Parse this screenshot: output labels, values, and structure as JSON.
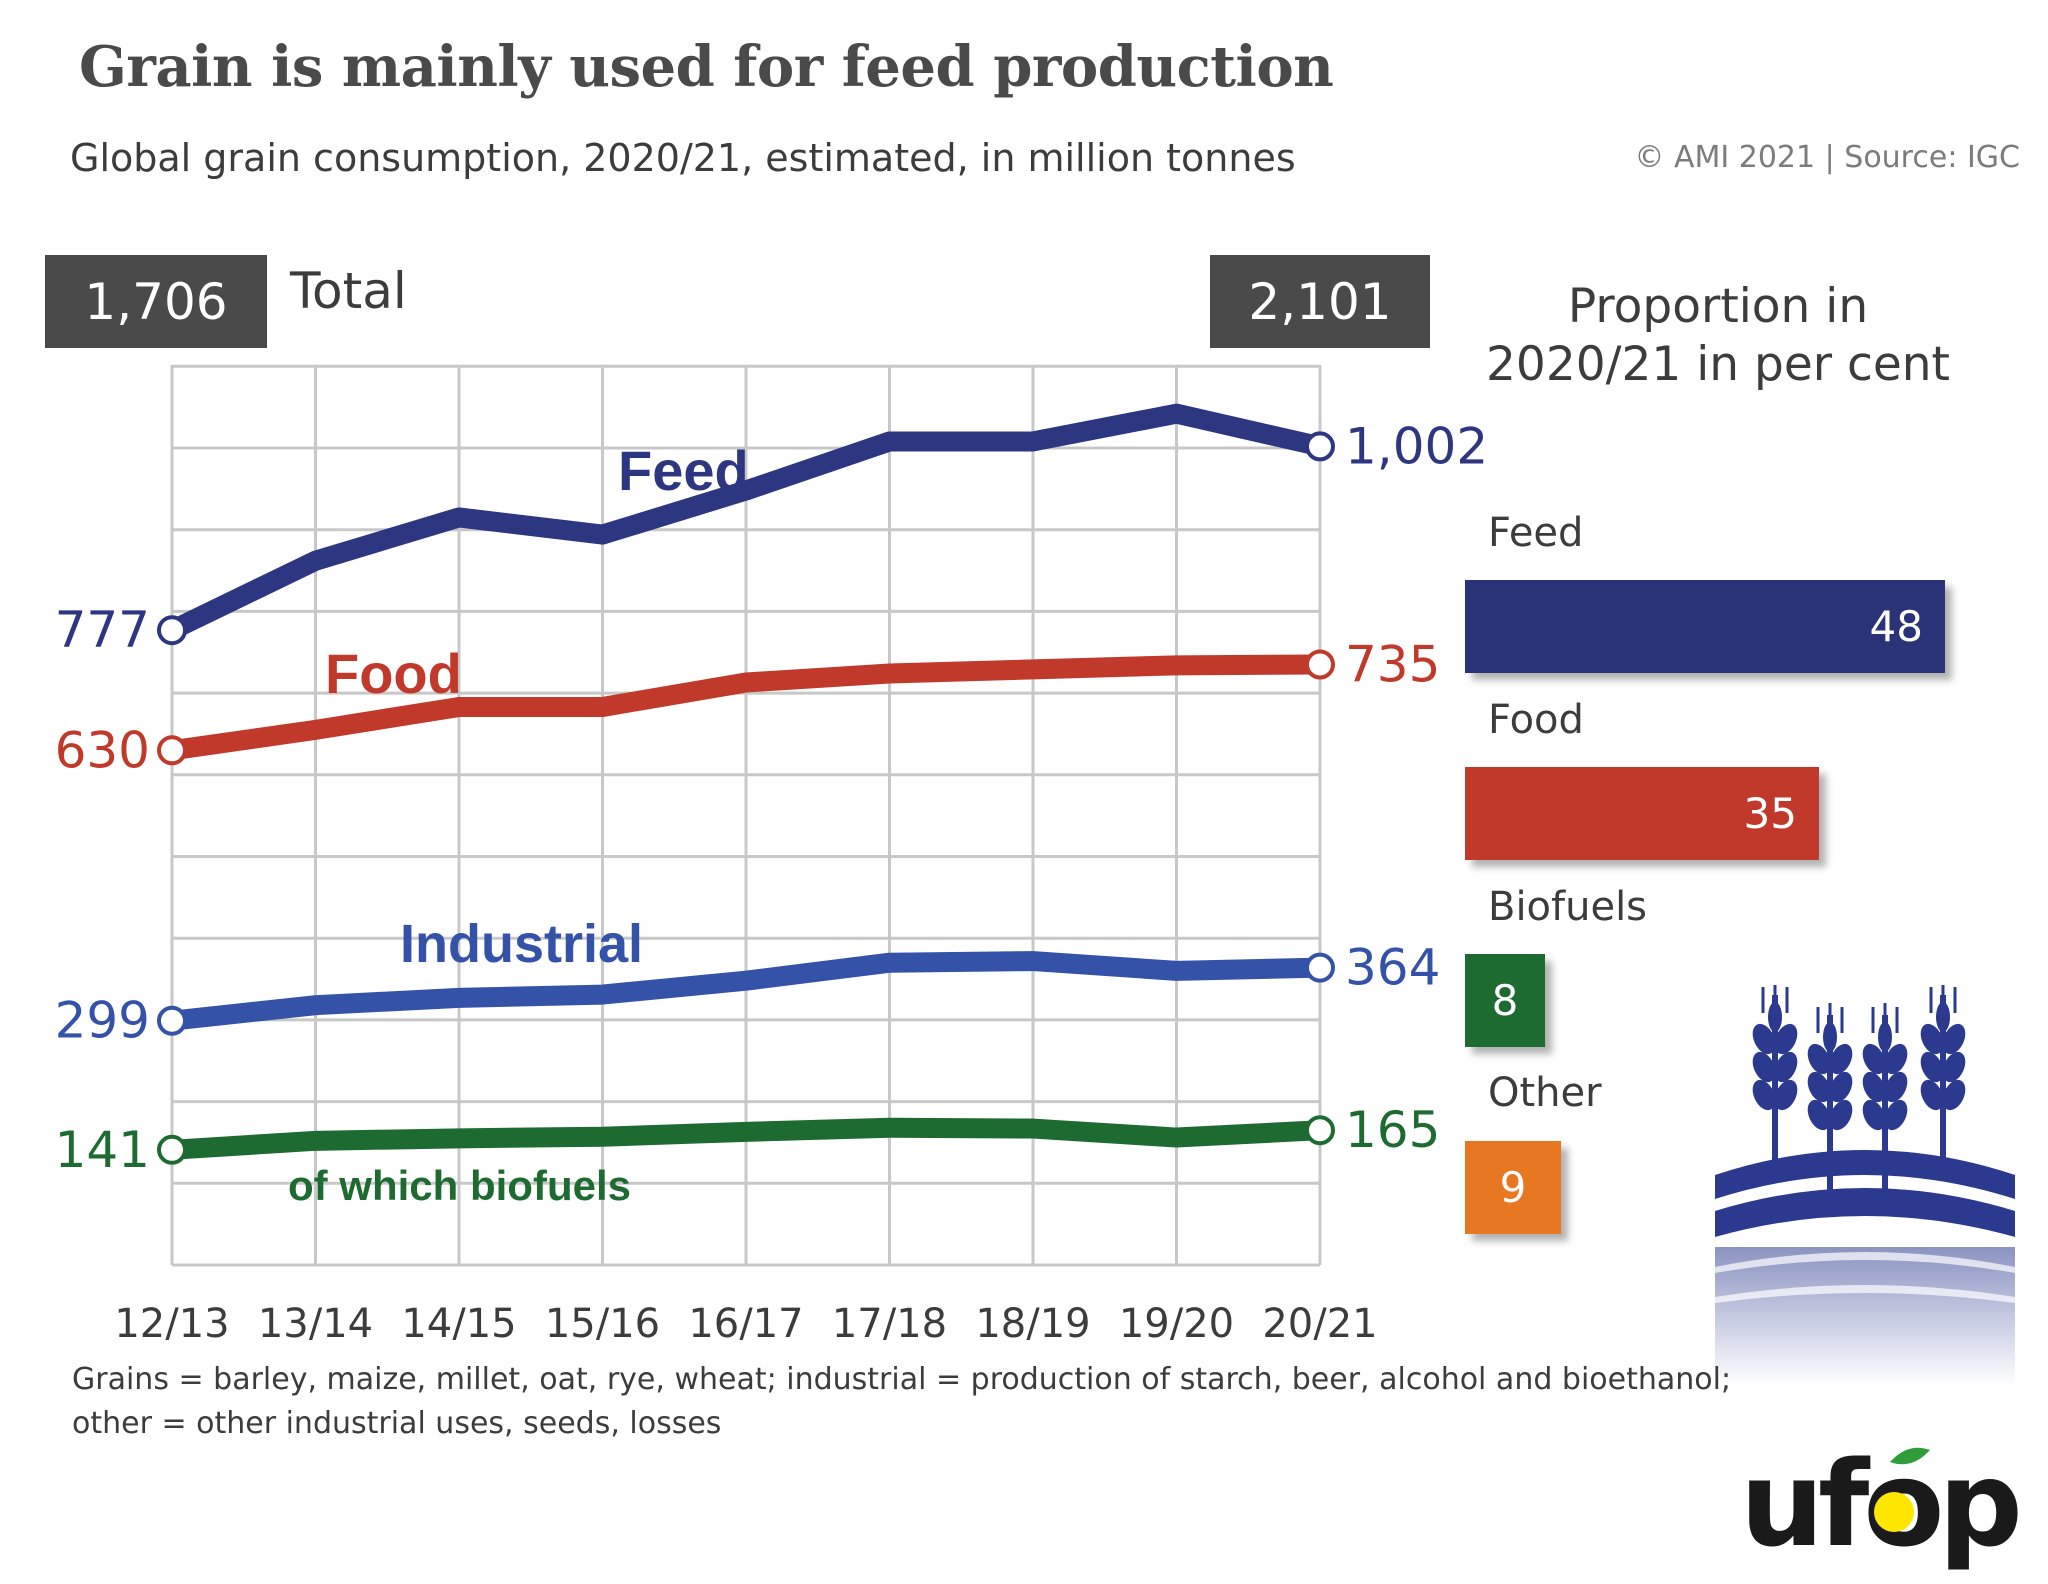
{
  "title": "Grain is mainly used for feed production",
  "subtitle": "Global grain consumption, 2020/21, estimated, in million tonnes",
  "credit": "© AMI 2021 | Source: IGC",
  "totals": {
    "start": "1,706",
    "label": "Total",
    "end": "2,101"
  },
  "chart_data": {
    "type": "line",
    "x": [
      "12/13",
      "13/14",
      "14/15",
      "15/16",
      "16/17",
      "17/18",
      "18/19",
      "19/20",
      "20/21"
    ],
    "ylim": [
      0,
      1100
    ],
    "grid": true,
    "series": [
      {
        "name": "Feed",
        "color": "#2d3680",
        "values": [
          777,
          862,
          915,
          894,
          948,
          1008,
          1008,
          1042,
          1002
        ],
        "start_label": "777",
        "end_label": "1,002"
      },
      {
        "name": "Food",
        "color": "#c0392b",
        "values": [
          630,
          655,
          683,
          683,
          713,
          724,
          729,
          734,
          735
        ],
        "start_label": "630",
        "end_label": "735"
      },
      {
        "name": "Industrial",
        "color": "#3352a8",
        "values": [
          299,
          318,
          327,
          331,
          348,
          370,
          372,
          360,
          364
        ],
        "start_label": "299",
        "end_label": "364"
      },
      {
        "name": "of which biofuels",
        "color": "#1e6b32",
        "values": [
          141,
          152,
          155,
          157,
          163,
          168,
          167,
          156,
          165
        ],
        "start_label": "141",
        "end_label": "165"
      }
    ]
  },
  "proportion": {
    "title": "Proportion in 2020/21 in per cent",
    "bars": [
      {
        "label": "Feed",
        "value": 48,
        "display": "48",
        "color": "#2a3278"
      },
      {
        "label": "Food",
        "value": 35,
        "display": "35",
        "color": "#c0392b"
      },
      {
        "label": "Biofuels",
        "value": 8,
        "display": "8",
        "color": "#1e6b32"
      },
      {
        "label": "Other",
        "value": 9,
        "display": "9",
        "color": "#e87722"
      }
    ]
  },
  "footnote": {
    "line1": "Grains = barley, maize, millet, oat, rye, wheat; industrial = production of starch, beer, alcohol and bioethanol;",
    "line2": "other = other industrial uses, seeds, losses"
  },
  "logo": {
    "text": "ufop"
  },
  "icons": [
    "grain-field-icon",
    "ufop-logo-icon"
  ]
}
